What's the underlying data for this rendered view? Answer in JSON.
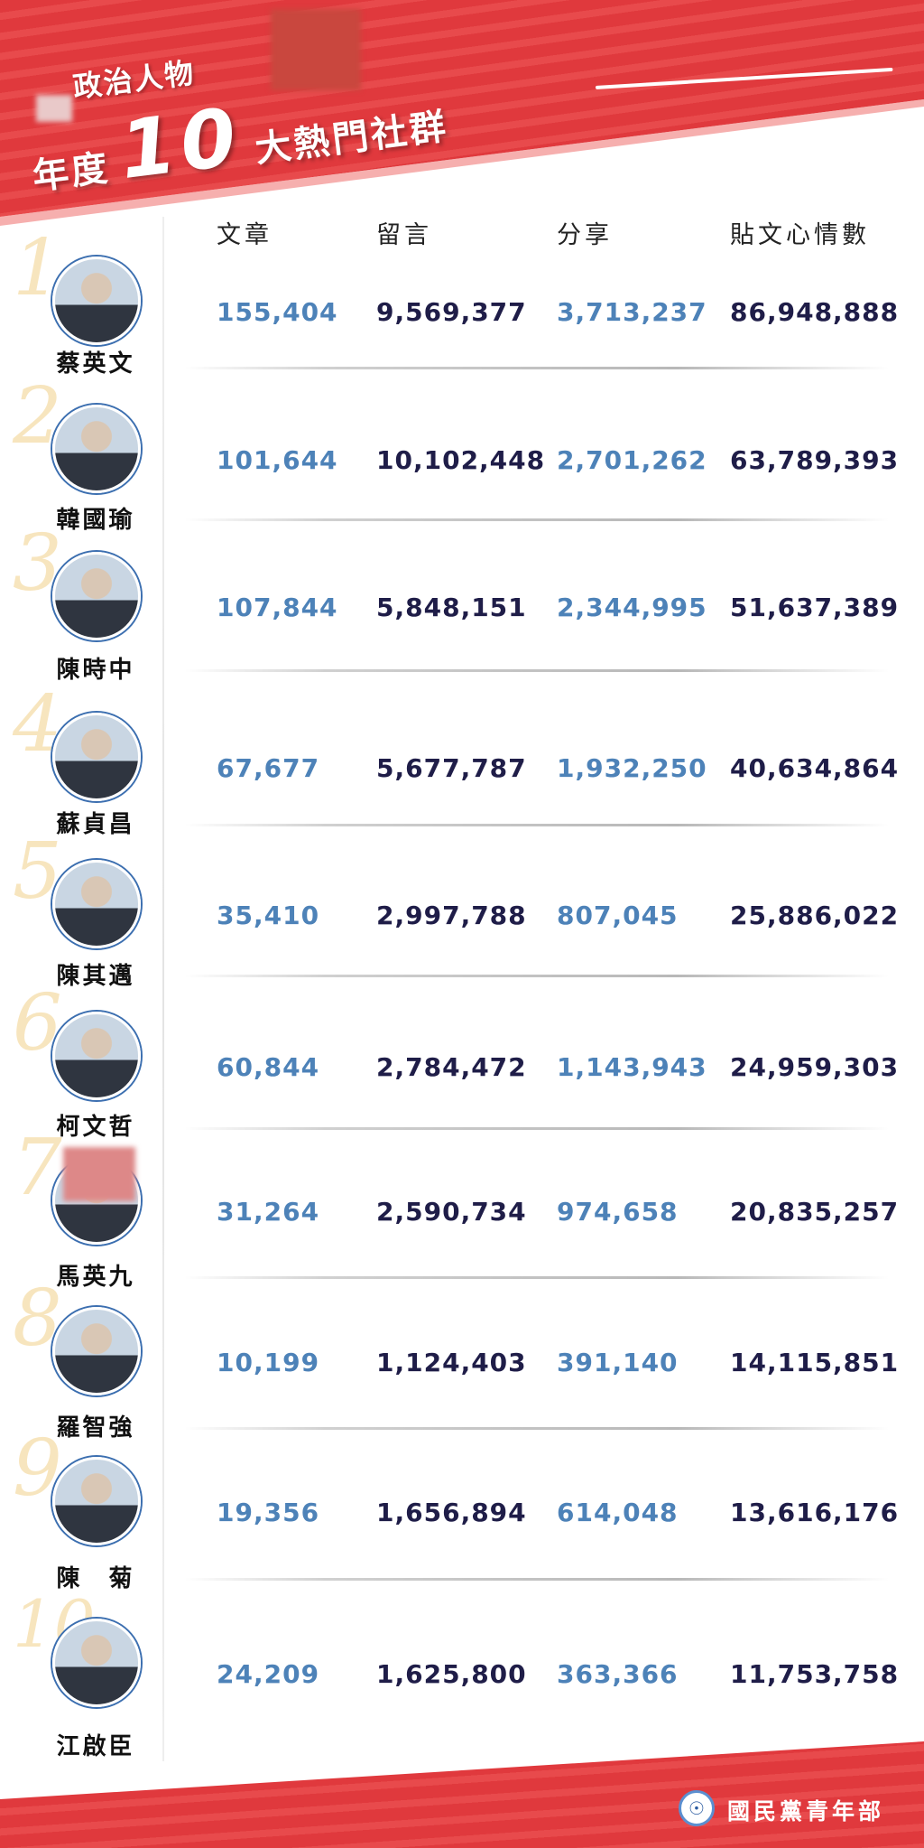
{
  "header": {
    "title_line1": "政治人物",
    "title_prefix": "年度",
    "title_number": "10",
    "title_suffix": "大熱門社群"
  },
  "columns": [
    "文章",
    "留言",
    "分享",
    "貼文心情數"
  ],
  "rows": [
    {
      "rank": "1",
      "name": "蔡英文",
      "values": [
        "155,404",
        "9,569,377",
        "3,713,237",
        "86,948,888"
      ]
    },
    {
      "rank": "2",
      "name": "韓國瑜",
      "values": [
        "101,644",
        "10,102,448",
        "2,701,262",
        "63,789,393"
      ]
    },
    {
      "rank": "3",
      "name": "陳時中",
      "values": [
        "107,844",
        "5,848,151",
        "2,344,995",
        "51,637,389"
      ]
    },
    {
      "rank": "4",
      "name": "蘇貞昌",
      "values": [
        "67,677",
        "5,677,787",
        "1,932,250",
        "40,634,864"
      ]
    },
    {
      "rank": "5",
      "name": "陳其邁",
      "values": [
        "35,410",
        "2,997,788",
        "807,045",
        "25,886,022"
      ]
    },
    {
      "rank": "6",
      "name": "柯文哲",
      "values": [
        "60,844",
        "2,784,472",
        "1,143,943",
        "24,959,303"
      ]
    },
    {
      "rank": "7",
      "name": "馬英九",
      "values": [
        "31,264",
        "2,590,734",
        "974,658",
        "20,835,257"
      ]
    },
    {
      "rank": "8",
      "name": "羅智強",
      "values": [
        "10,199",
        "1,124,403",
        "391,140",
        "14,115,851"
      ]
    },
    {
      "rank": "9",
      "name": "陳　菊",
      "values": [
        "19,356",
        "1,656,894",
        "614,048",
        "13,616,176"
      ]
    },
    {
      "rank": "10",
      "name": "江啟臣",
      "values": [
        "24,209",
        "1,625,800",
        "363,366",
        "11,753,758"
      ]
    }
  ],
  "footer": {
    "org": "國民黨青年部",
    "logo_icon": "kmt-emblem-icon"
  },
  "colors": {
    "banner_red": "#e0393d",
    "value_blue": "#4d82b8",
    "value_dark": "#1f1d48",
    "rank_gold": "#f6dfae"
  }
}
